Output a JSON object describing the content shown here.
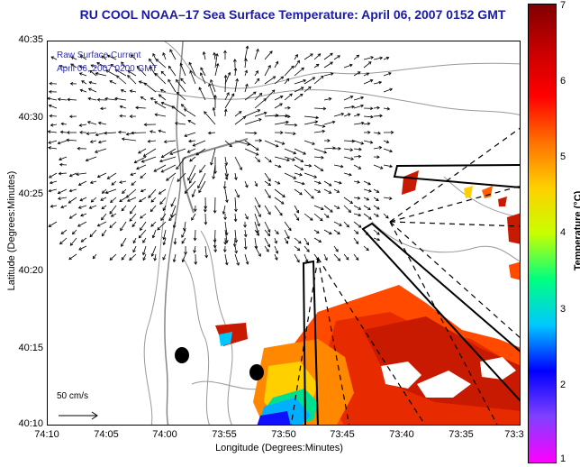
{
  "title": "RU COOL  NOAA–17  Sea Surface Temperature:  April 06, 2007 0152 GMT",
  "legend_note": [
    "Raw Surface Current",
    "April 06, 2007 0200 GMT"
  ],
  "axes": {
    "xlabel": "Longitude (Degrees:Minutes)",
    "ylabel": "Latitude (Degrees:Minutes)",
    "x_ticks": [
      "74:10",
      "74:05",
      "74:00",
      "73:55",
      "73:50",
      "73:45",
      "73:40",
      "73:35",
      "73:3"
    ],
    "y_ticks": [
      "40:35",
      "40:30",
      "40:25",
      "40:20",
      "40:15",
      "40:10"
    ]
  },
  "colorbar": {
    "label": "Temperature (°C)",
    "ticks": [
      "7",
      "6",
      "5",
      "4",
      "3",
      "2",
      "1"
    ],
    "range": [
      1,
      7
    ],
    "colors": [
      "#ff00ff",
      "#8040ff",
      "#0000ff",
      "#00c8ff",
      "#00ff80",
      "#c8ff00",
      "#ffd000",
      "#ff7000",
      "#ff0000",
      "#c80000",
      "#800000"
    ]
  },
  "scale_label": "50 cm/s",
  "colors": {
    "title": "#1a1aa6",
    "note": "#3333aa",
    "contour": "#999999",
    "land_fill": "#ffffff"
  }
}
